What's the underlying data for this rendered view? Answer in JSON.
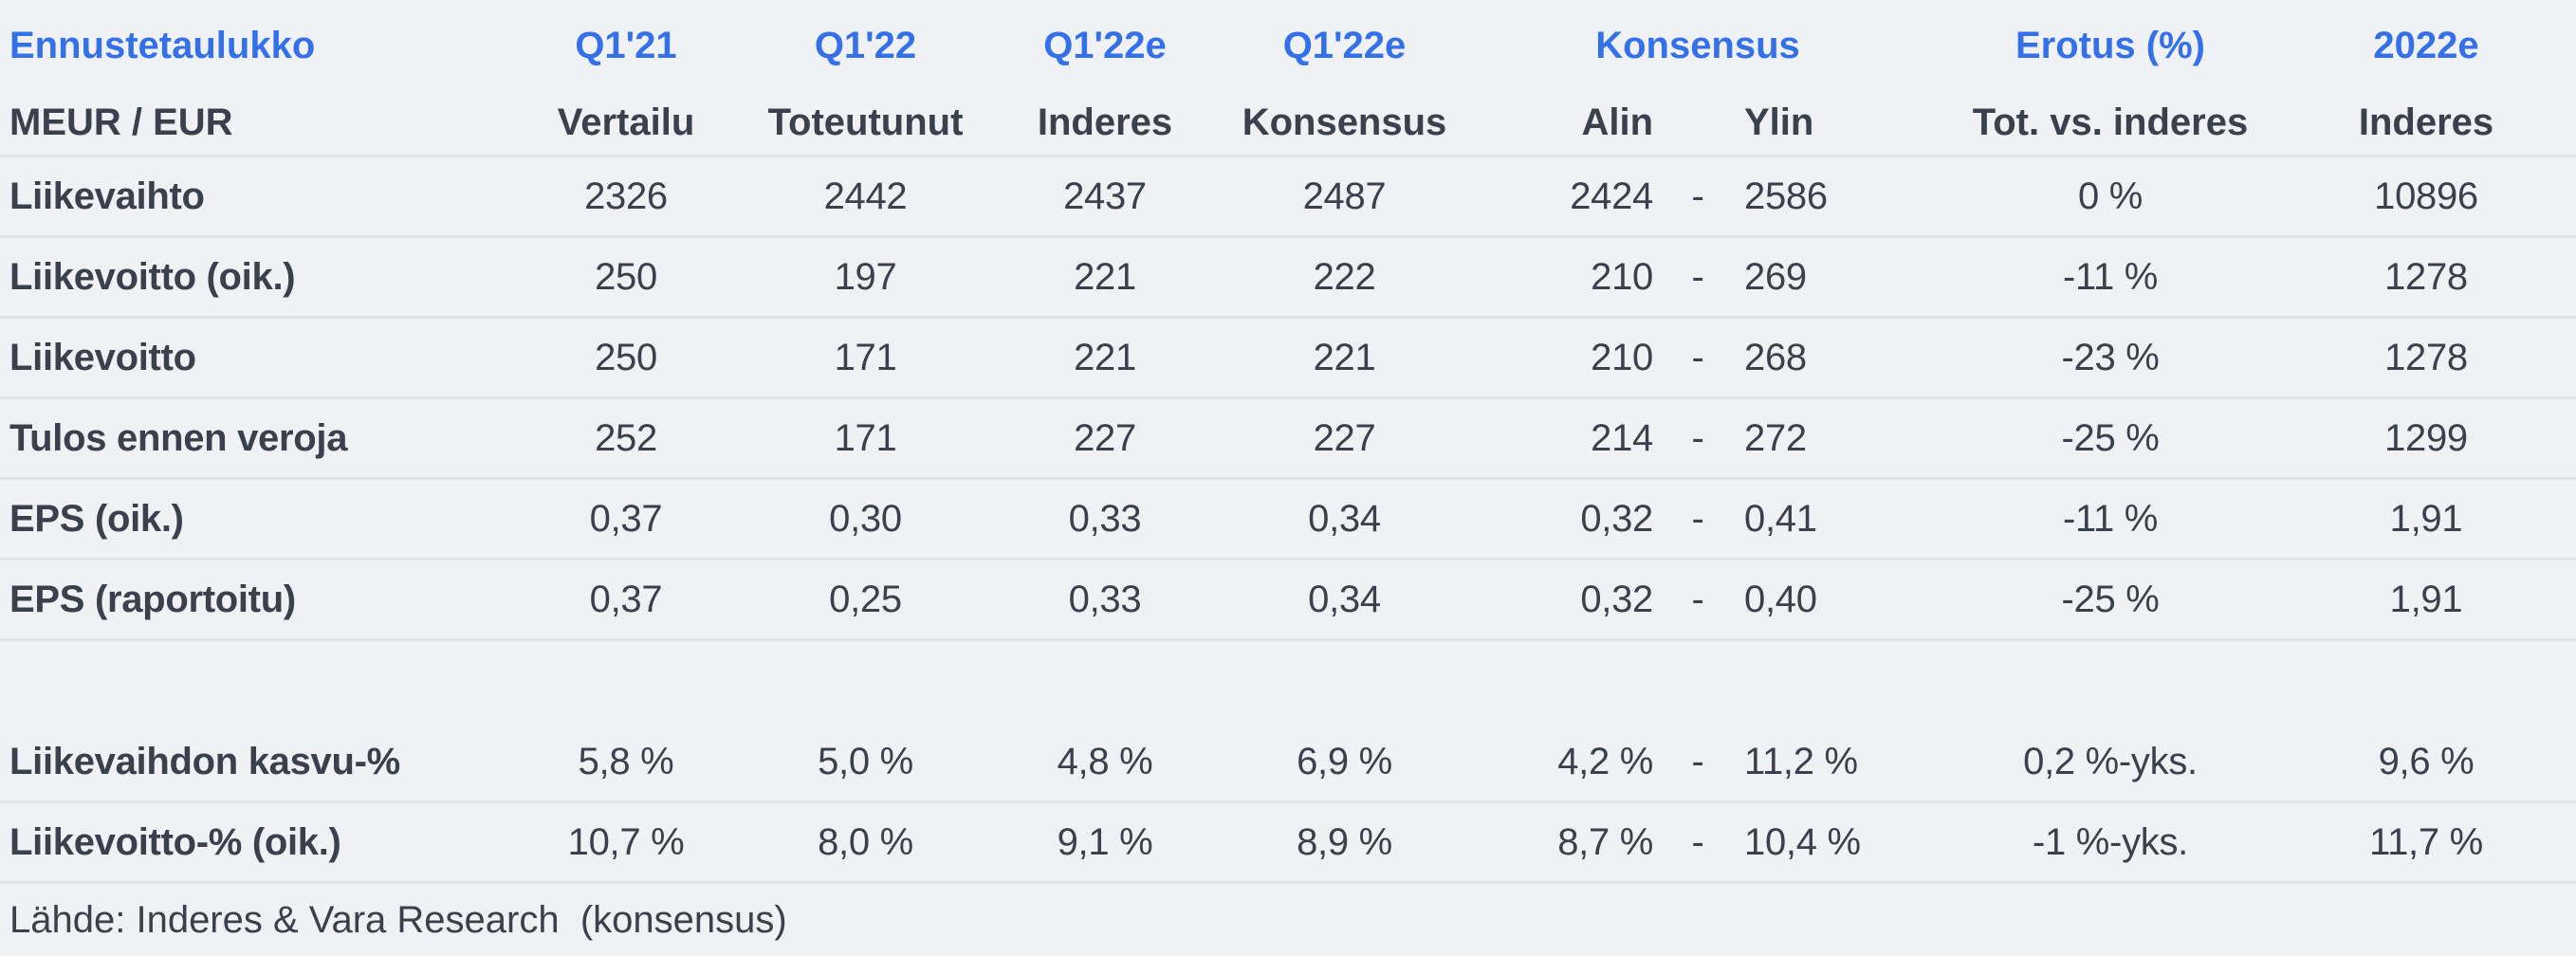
{
  "chart_data": {
    "type": "table",
    "title": "Ennustetaulukko",
    "units_label": "MEUR / EUR",
    "header_top": [
      "Q1'21",
      "Q1'22",
      "Q1'22e",
      "Q1'22e",
      "Konsensus",
      "Erotus (%)",
      "2022e"
    ],
    "header_sub": [
      "Vertailu",
      "Toteutunut",
      "Inderes",
      "Konsensus",
      "Alin",
      "Ylin",
      "Tot. vs. inderes",
      "Inderes"
    ],
    "rows": [
      {
        "label": "Liikevaihto",
        "cells": [
          "2326",
          "2442",
          "2437",
          "2487",
          "2424",
          "-",
          "2586",
          "0 %",
          "10896"
        ]
      },
      {
        "label": "Liikevoitto (oik.)",
        "cells": [
          "250",
          "197",
          "221",
          "222",
          "210",
          "-",
          "269",
          "-11 %",
          "1278"
        ]
      },
      {
        "label": "Liikevoitto",
        "cells": [
          "250",
          "171",
          "221",
          "221",
          "210",
          "-",
          "268",
          "-23 %",
          "1278"
        ]
      },
      {
        "label": "Tulos ennen veroja",
        "cells": [
          "252",
          "171",
          "227",
          "227",
          "214",
          "-",
          "272",
          "-25 %",
          "1299"
        ]
      },
      {
        "label": "EPS (oik.)",
        "cells": [
          "0,37",
          "0,30",
          "0,33",
          "0,34",
          "0,32",
          "-",
          "0,41",
          "-11 %",
          "1,91"
        ]
      },
      {
        "label": "EPS (raportoitu)",
        "cells": [
          "0,37",
          "0,25",
          "0,33",
          "0,34",
          "0,32",
          "-",
          "0,40",
          "-25 %",
          "1,91"
        ]
      },
      {
        "spacer": true,
        "label": "",
        "cells": []
      },
      {
        "label": "Liikevaihdon kasvu-%",
        "cells": [
          "5,8 %",
          "5,0 %",
          "4,8 %",
          "6,9 %",
          "4,2 %",
          "-",
          "11,2 %",
          "0,2 %-yks.",
          "9,6 %"
        ]
      },
      {
        "label": "Liikevoitto-% (oik.)",
        "cells": [
          "10,7 %",
          "8,0 %",
          "9,1 %",
          "8,9 %",
          "8,7 %",
          "-",
          "10,4 %",
          "-1 %-yks.",
          "11,7 %"
        ]
      }
    ],
    "source_note": "Lähde: Inderes & Vara Research  (konsensus)",
    "layout_hints": {
      "grid": "off",
      "row_count": 8,
      "konsensus_group_spans": [
        "Alin",
        "Ylin"
      ]
    }
  },
  "colors": {
    "accent_blue": "#3470e8",
    "text_dark": "#3a414d",
    "background": "#f0f1f5",
    "divider": "#e1e2e6"
  }
}
